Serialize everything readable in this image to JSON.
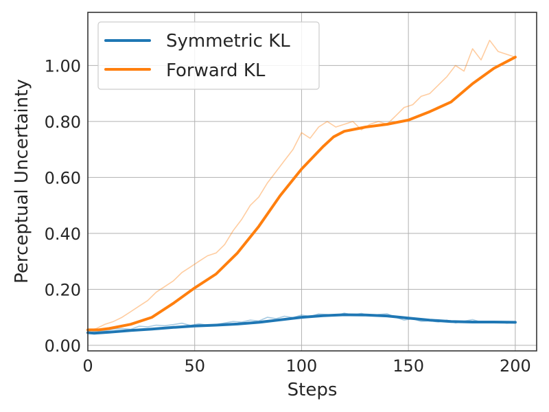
{
  "chart_data": {
    "type": "line",
    "title": "",
    "xlabel": "Steps",
    "ylabel": "Perceptual Uncertainty",
    "xlim": [
      0,
      210
    ],
    "ylim": [
      -0.02,
      1.19
    ],
    "xticks": [
      0,
      50,
      100,
      150,
      200
    ],
    "xtick_labels": [
      "0",
      "50",
      "100",
      "150",
      "200"
    ],
    "yticks": [
      0.0,
      0.2,
      0.4,
      0.6,
      0.8,
      1.0
    ],
    "ytick_labels": [
      "0.00",
      "0.20",
      "0.40",
      "0.60",
      "0.80",
      "1.00"
    ],
    "grid": true,
    "legend_position": "top-left",
    "series": [
      {
        "name": "Symmetric KL",
        "color": "#1f77b4",
        "smoothed": {
          "x": [
            0,
            3,
            10,
            20,
            30,
            40,
            50,
            60,
            70,
            80,
            90,
            100,
            110,
            120,
            130,
            140,
            150,
            160,
            170,
            180,
            190,
            200
          ],
          "y": [
            0.045,
            0.043,
            0.047,
            0.053,
            0.058,
            0.064,
            0.069,
            0.072,
            0.076,
            0.082,
            0.091,
            0.1,
            0.106,
            0.109,
            0.108,
            0.105,
            0.097,
            0.09,
            0.085,
            0.083,
            0.083,
            0.082
          ]
        },
        "raw": {
          "x": [
            0,
            4,
            8,
            12,
            16,
            20,
            24,
            28,
            32,
            36,
            40,
            44,
            48,
            52,
            56,
            60,
            64,
            68,
            72,
            76,
            80,
            84,
            88,
            92,
            96,
            100,
            104,
            108,
            112,
            116,
            120,
            124,
            128,
            132,
            136,
            140,
            144,
            148,
            152,
            156,
            160,
            164,
            168,
            172,
            176,
            180,
            184,
            188,
            192,
            196,
            200
          ],
          "y": [
            0.055,
            0.048,
            0.052,
            0.058,
            0.06,
            0.057,
            0.068,
            0.066,
            0.072,
            0.07,
            0.074,
            0.079,
            0.071,
            0.077,
            0.072,
            0.074,
            0.08,
            0.085,
            0.083,
            0.09,
            0.087,
            0.1,
            0.095,
            0.104,
            0.099,
            0.108,
            0.103,
            0.112,
            0.11,
            0.106,
            0.115,
            0.108,
            0.114,
            0.106,
            0.11,
            0.113,
            0.1,
            0.09,
            0.095,
            0.085,
            0.088,
            0.083,
            0.09,
            0.08,
            0.086,
            0.092,
            0.083,
            0.082,
            0.085,
            0.079,
            0.083
          ]
        }
      },
      {
        "name": "Forward KL",
        "color": "#ff7f0e",
        "smoothed": {
          "x": [
            0,
            5,
            10,
            20,
            30,
            40,
            50,
            60,
            70,
            80,
            90,
            100,
            110,
            115,
            120,
            130,
            140,
            150,
            160,
            170,
            180,
            190,
            200
          ],
          "y": [
            0.055,
            0.055,
            0.06,
            0.075,
            0.1,
            0.15,
            0.205,
            0.255,
            0.33,
            0.425,
            0.535,
            0.63,
            0.71,
            0.745,
            0.765,
            0.78,
            0.79,
            0.805,
            0.835,
            0.87,
            0.935,
            0.99,
            1.03
          ]
        },
        "raw": {
          "x": [
            0,
            4,
            8,
            12,
            16,
            20,
            24,
            28,
            32,
            36,
            40,
            44,
            48,
            52,
            56,
            60,
            64,
            68,
            72,
            76,
            80,
            84,
            88,
            92,
            96,
            100,
            104,
            108,
            112,
            116,
            120,
            124,
            128,
            132,
            136,
            140,
            144,
            148,
            152,
            156,
            160,
            164,
            168,
            172,
            176,
            180,
            184,
            188,
            192,
            196,
            200
          ],
          "y": [
            0.052,
            0.06,
            0.075,
            0.085,
            0.1,
            0.12,
            0.14,
            0.16,
            0.19,
            0.21,
            0.23,
            0.26,
            0.28,
            0.3,
            0.32,
            0.33,
            0.36,
            0.41,
            0.45,
            0.5,
            0.53,
            0.58,
            0.62,
            0.66,
            0.7,
            0.76,
            0.74,
            0.78,
            0.8,
            0.78,
            0.79,
            0.8,
            0.77,
            0.79,
            0.8,
            0.79,
            0.82,
            0.85,
            0.86,
            0.89,
            0.9,
            0.93,
            0.96,
            1.0,
            0.98,
            1.06,
            1.02,
            1.09,
            1.05,
            1.04,
            1.03
          ]
        }
      }
    ]
  }
}
